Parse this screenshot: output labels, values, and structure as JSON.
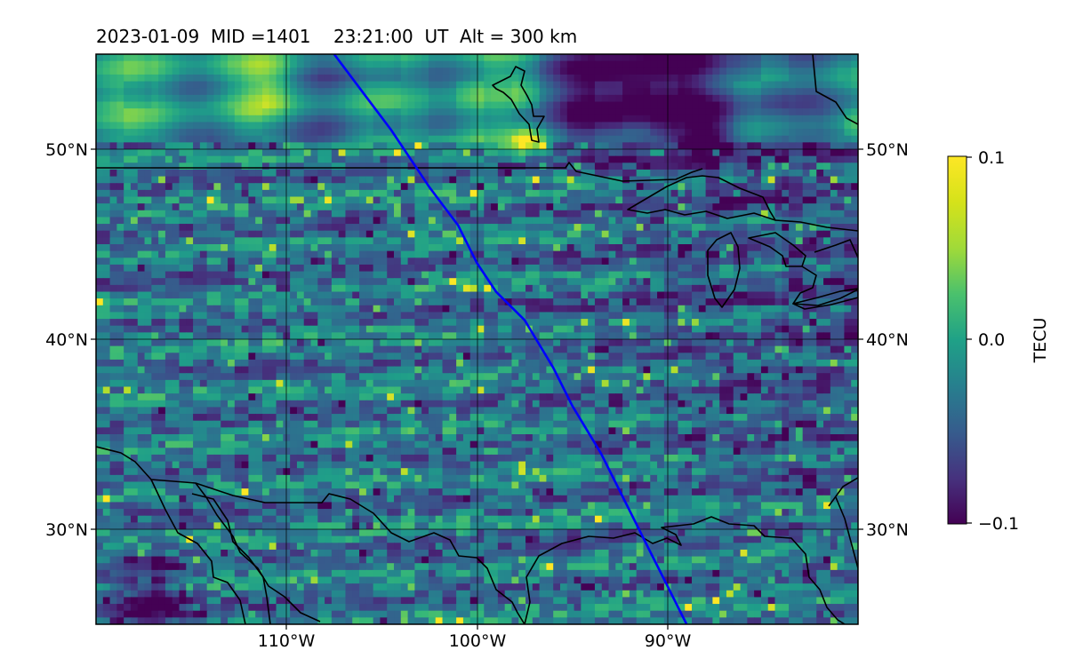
{
  "title": "2023-01-09  MID =1401    23:21:00  UT  Alt = 300 km",
  "map": {
    "x_ticks": [
      "110°W",
      "100°W",
      "90°W"
    ],
    "y_ticks_left": [
      "50°N",
      "40°N",
      "30°N"
    ],
    "y_ticks_right": [
      "50°N",
      "40°N",
      "30°N"
    ],
    "track_color": "#0000ff",
    "coastline_color": "#000000"
  },
  "colorbar": {
    "label": "TECU",
    "ticks": [
      "0.1",
      "0.0",
      "−0.1"
    ],
    "colormap": "viridis",
    "top_color": "#fde725",
    "bottom_color": "#440154"
  },
  "chart_data": {
    "type": "heatmap",
    "title": "2023-01-09  MID =1401    23:21:00  UT  Alt = 300 km",
    "projection": "lat-lon",
    "lon_range": [
      -120,
      -80
    ],
    "lat_range": [
      25,
      55
    ],
    "x_ticks": [
      -110,
      -100,
      -90
    ],
    "y_ticks": [
      50,
      40,
      30
    ],
    "colorbar": {
      "label": "TECU",
      "range": [
        -0.1,
        0.1
      ],
      "ticks": [
        0.1,
        0.0,
        -0.1
      ],
      "colormap": "viridis"
    },
    "grid": true,
    "track": {
      "color": "#0000ff",
      "lonlat": [
        [
          -107.5,
          55
        ],
        [
          -106,
          53
        ],
        [
          -104.5,
          51
        ],
        [
          -103.5,
          49.5
        ],
        [
          -102.5,
          48
        ],
        [
          -101,
          46
        ],
        [
          -100,
          44
        ],
        [
          -99,
          42.5
        ],
        [
          -97.5,
          41
        ],
        [
          -96,
          38.5
        ],
        [
          -95,
          36.5
        ],
        [
          -93.5,
          34
        ],
        [
          -92,
          31
        ],
        [
          -91,
          29
        ],
        [
          -90,
          27
        ],
        [
          -89,
          25
        ]
      ]
    }
  }
}
